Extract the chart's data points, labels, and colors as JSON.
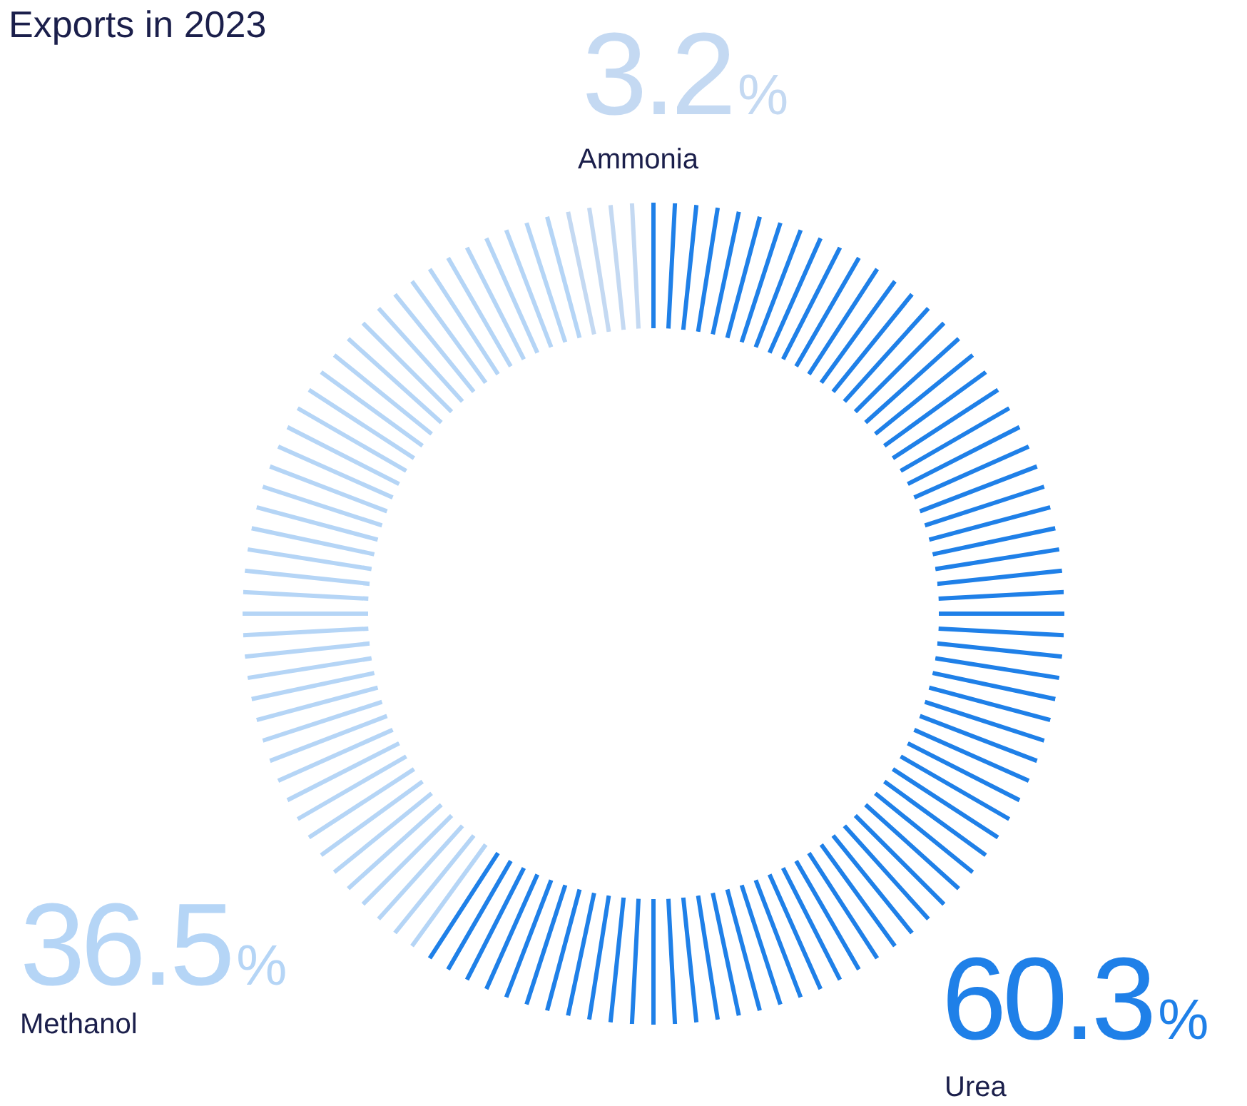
{
  "chart_data": {
    "type": "donut",
    "title": "Exports in 2023",
    "categories": [
      "Urea",
      "Methanol",
      "Ammonia"
    ],
    "values": [
      60.3,
      36.5,
      3.2
    ],
    "colors": [
      "#1f80e8",
      "#b5d5f6",
      "#c4d9f2"
    ],
    "value_labels": [
      "60.3%",
      "36.5%",
      "3.2%"
    ]
  }
}
